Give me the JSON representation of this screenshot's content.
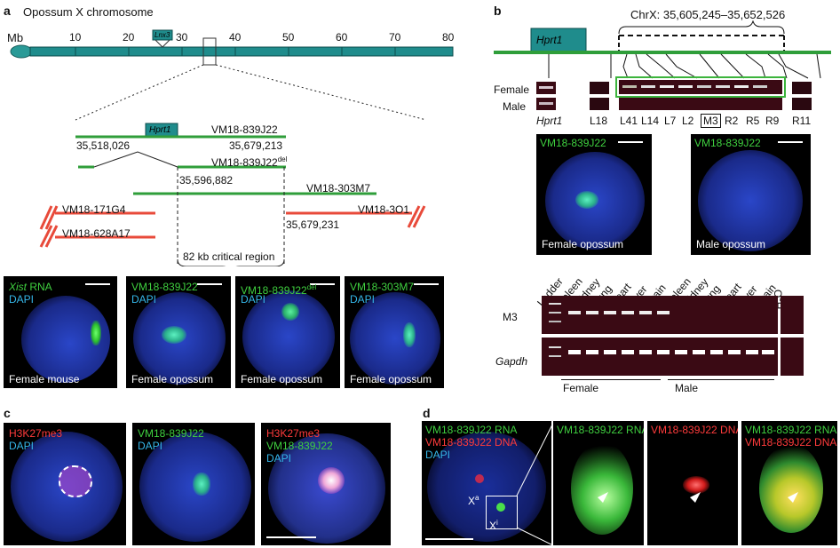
{
  "panel_labels": {
    "a": "a",
    "b": "b",
    "c": "c",
    "d": "d"
  },
  "a": {
    "title": "Opossum X chromosome",
    "axis_unit": "Mb",
    "ticks": [
      "10",
      "20",
      "30",
      "40",
      "50",
      "60",
      "70",
      "80"
    ],
    "gene_on_chrom": "Lnx3",
    "hprt1": "Hprt1",
    "bac1": "VM18-839J22",
    "coord1": "35,518,026",
    "coord2": "35,679,213",
    "bac_del": "VM18-839J22",
    "bac_del_sup": "del",
    "coord_del": "35,596,882",
    "bac3": "VM18-303M7",
    "bac4": "VM18-171G4",
    "bac5": "VM18-628A17",
    "bac6": "VM18-3O1",
    "coord6": "35,679,231",
    "critical": "82 kb critical region",
    "micro": [
      {
        "l1": "Xist",
        "l1b": " RNA",
        "l2": "DAPI",
        "cap": "Female mouse"
      },
      {
        "l1": "VM18-839J22",
        "l2": "DAPI",
        "cap": "Female opossum"
      },
      {
        "l1": "VM18-839J22",
        "l1sup": "del",
        "l2": "DAPI",
        "cap": "Female opossum"
      },
      {
        "l1": "VM18-303M7",
        "l2": "DAPI",
        "cap": "Female opossum"
      }
    ]
  },
  "b": {
    "gene": "Hprt1",
    "coords": "ChrX: 35,605,245–35,652,526",
    "row_female": "Female",
    "row_male": "Male",
    "hprt1_label": "Hprt1",
    "lanes": [
      "L18",
      "L41",
      "L14",
      "L7",
      "L2",
      "M3",
      "R2",
      "R5",
      "R9",
      "R11"
    ],
    "micro": [
      {
        "l1": "VM18-839J22",
        "cap": "Female opossum"
      },
      {
        "l1": "VM18-839J22",
        "cap": "Male opossum"
      }
    ],
    "gel_cols": [
      "Ladder",
      "Spleen",
      "Kidney",
      "Lung",
      "Heart",
      "Liver",
      "Brain",
      "Spleen",
      "Kidney",
      "Lung",
      "Heart",
      "Liver",
      "Brain",
      "H",
      "2",
      "O"
    ],
    "gel_rows": [
      "M3",
      "Gapdh"
    ],
    "group_female": "Female",
    "group_male": "Male"
  },
  "c": {
    "micro": [
      {
        "l1": "H3K27me3",
        "l2": "DAPI"
      },
      {
        "l1": "VM18-839J22",
        "l2": "DAPI"
      },
      {
        "l1": "H3K27me3",
        "l2": "VM18-839J22",
        "l3": "DAPI"
      }
    ]
  },
  "d": {
    "main": {
      "l1": "VM18-839J22 RNA",
      "l2": "VM18-839J22 DNA",
      "l3": "DAPI",
      "xa": "X",
      "xa_sup": "a",
      "xi": "X",
      "xi_sup": "i"
    },
    "p2": "VM18-839J22 RNA",
    "p3": "VM18-839J22 DNA",
    "p4a": "VM18-839J22 RNA",
    "p4b": "VM18-839J22 DNA"
  }
}
